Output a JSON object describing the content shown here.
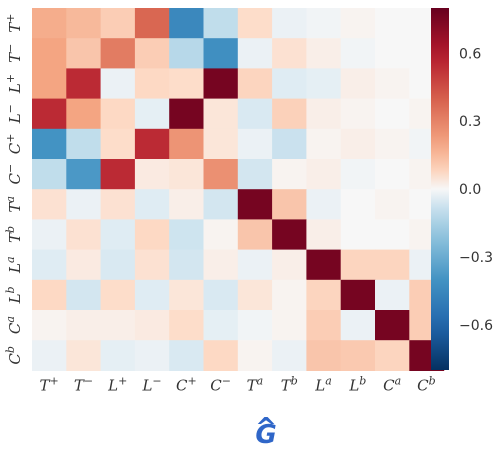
{
  "chart_data": {
    "type": "heatmap",
    "title": "G",
    "title_accent": "^",
    "colormap": "RdBu_r",
    "vmin": -0.8,
    "vmax": 0.8,
    "x_labels": [
      {
        "base": "T",
        "sup": "+"
      },
      {
        "base": "T",
        "sup": "−"
      },
      {
        "base": "L",
        "sup": "+"
      },
      {
        "base": "L",
        "sup": "−"
      },
      {
        "base": "C",
        "sup": "+"
      },
      {
        "base": "C",
        "sup": "−"
      },
      {
        "base": "T",
        "sup": "a"
      },
      {
        "base": "T",
        "sup": "b"
      },
      {
        "base": "L",
        "sup": "a"
      },
      {
        "base": "L",
        "sup": "b"
      },
      {
        "base": "C",
        "sup": "a"
      },
      {
        "base": "C",
        "sup": "b"
      }
    ],
    "y_labels": [
      {
        "base": "T",
        "sup": "+"
      },
      {
        "base": "T",
        "sup": "−"
      },
      {
        "base": "L",
        "sup": "+"
      },
      {
        "base": "L",
        "sup": "−"
      },
      {
        "base": "C",
        "sup": "+"
      },
      {
        "base": "C",
        "sup": "−"
      },
      {
        "base": "T",
        "sup": "a"
      },
      {
        "base": "T",
        "sup": "b"
      },
      {
        "base": "L",
        "sup": "a"
      },
      {
        "base": "L",
        "sup": "b"
      },
      {
        "base": "C",
        "sup": "a"
      },
      {
        "base": "C",
        "sup": "b"
      }
    ],
    "values": [
      [
        0.18,
        0.15,
        0.1,
        0.38,
        -0.45,
        -0.1,
        0.06,
        -0.02,
        -0.01,
        0.01,
        0.0,
        0.0
      ],
      [
        0.2,
        0.12,
        0.32,
        0.1,
        -0.12,
        -0.42,
        -0.02,
        0.05,
        0.02,
        -0.01,
        0.0,
        0.0
      ],
      [
        0.2,
        0.55,
        -0.02,
        0.07,
        0.06,
        0.76,
        0.08,
        -0.04,
        -0.03,
        0.02,
        0.01,
        0.0
      ],
      [
        0.55,
        0.2,
        0.07,
        -0.03,
        0.76,
        0.04,
        -0.05,
        0.09,
        0.02,
        0.01,
        0.0,
        0.01
      ],
      [
        -0.4,
        -0.1,
        0.06,
        0.55,
        0.25,
        0.04,
        -0.02,
        -0.08,
        0.01,
        0.02,
        0.01,
        -0.01
      ],
      [
        -0.1,
        -0.38,
        0.55,
        0.03,
        0.04,
        0.26,
        -0.06,
        0.01,
        0.02,
        -0.01,
        0.0,
        0.01
      ],
      [
        0.05,
        -0.02,
        0.05,
        -0.04,
        0.02,
        -0.06,
        0.76,
        0.12,
        -0.02,
        0.0,
        0.01,
        0.0
      ],
      [
        -0.02,
        0.05,
        -0.04,
        0.07,
        -0.07,
        0.01,
        0.12,
        0.76,
        0.02,
        0.0,
        0.0,
        0.01
      ],
      [
        -0.04,
        0.03,
        -0.05,
        0.05,
        -0.06,
        0.02,
        -0.02,
        0.02,
        0.76,
        0.08,
        0.08,
        -0.02
      ],
      [
        0.07,
        -0.06,
        0.06,
        -0.04,
        0.04,
        -0.05,
        0.04,
        0.01,
        0.08,
        0.76,
        -0.02,
        0.1
      ],
      [
        0.01,
        0.02,
        0.02,
        0.03,
        0.06,
        -0.03,
        -0.01,
        0.01,
        0.1,
        -0.02,
        0.76,
        0.1
      ],
      [
        -0.02,
        0.04,
        -0.03,
        -0.02,
        -0.05,
        0.07,
        0.01,
        -0.02,
        0.12,
        0.11,
        0.08,
        0.76
      ]
    ],
    "colorbar_ticks": [
      "0.6",
      "0.3",
      "0.0",
      "−0.3",
      "−0.6"
    ],
    "colorbar_tick_values": [
      0.6,
      0.3,
      0.0,
      -0.3,
      -0.6
    ],
    "grid": false
  }
}
